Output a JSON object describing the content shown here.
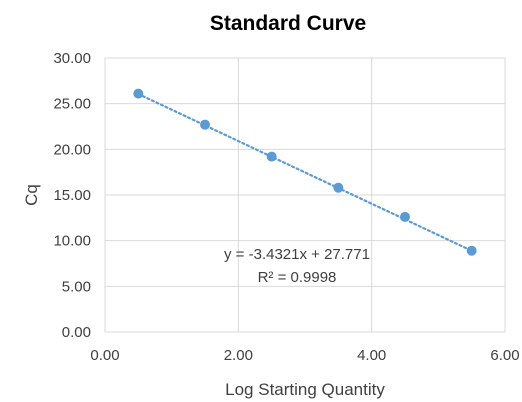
{
  "chart_data": {
    "type": "scatter",
    "title": "Standard Curve",
    "xlabel": "Log Starting Quantity",
    "ylabel": "Cq",
    "xlim": [
      0,
      6
    ],
    "ylim": [
      0,
      30
    ],
    "x_ticks": [
      "0.00",
      "2.00",
      "4.00",
      "6.00"
    ],
    "y_ticks": [
      "0.00",
      "5.00",
      "10.00",
      "15.00",
      "20.00",
      "25.00",
      "30.00"
    ],
    "grid": true,
    "legend": "none",
    "series": [
      {
        "x": [
          0.5,
          1.5,
          2.5,
          3.5,
          4.5,
          5.5
        ],
        "y": [
          26.1,
          22.7,
          19.2,
          15.8,
          12.6,
          8.9
        ],
        "color": "#5b9bd5"
      }
    ],
    "trendline": {
      "type": "linear",
      "slope": -3.4321,
      "intercept": 27.771,
      "style": "dotted",
      "color": "#5b9bd5",
      "equation_label": "y = -3.4321x + 27.771",
      "r2_label": "R² = 0.9998"
    }
  }
}
